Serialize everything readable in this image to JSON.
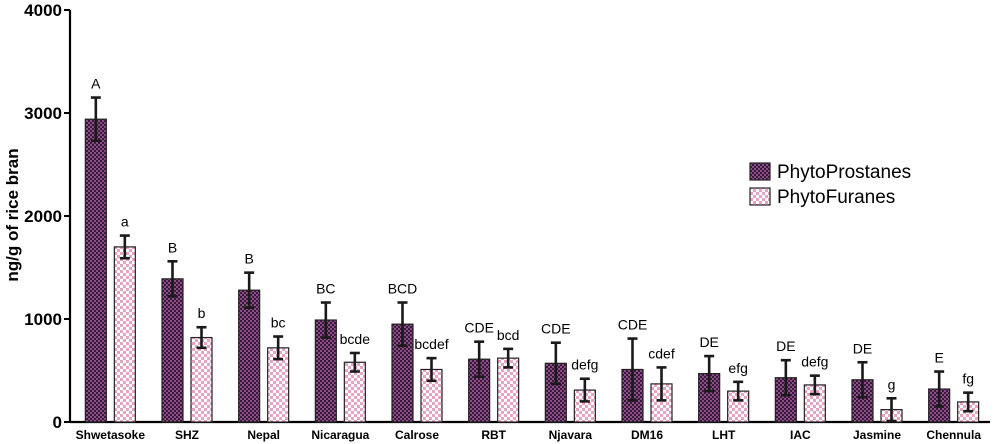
{
  "chart_data": {
    "type": "bar",
    "ylabel": "ng/g of rice bran",
    "xlabel": "",
    "ylim": [
      0,
      4000
    ],
    "yticks": [
      0,
      1000,
      2000,
      3000,
      4000
    ],
    "categories": [
      "Shwetasoke",
      "SHZ",
      "Nepal",
      "Nicaragua",
      "Calrose",
      "RBT",
      "Njavara",
      "DM16",
      "LHT",
      "IAC",
      "Jasmine",
      "Chennula"
    ],
    "legend_position": "right",
    "series": [
      {
        "name": "PhytoProstanes",
        "color": "#7b3f78",
        "pattern": "checker-dark",
        "values": [
          2940,
          1390,
          1280,
          990,
          950,
          610,
          570,
          510,
          470,
          430,
          410,
          320
        ],
        "errors": [
          210,
          170,
          170,
          170,
          210,
          170,
          200,
          300,
          170,
          170,
          170,
          170
        ],
        "labels": [
          "A",
          "B",
          "B",
          "BC",
          "BCD",
          "CDE",
          "CDE",
          "CDE",
          "DE",
          "DE",
          "DE",
          "E"
        ]
      },
      {
        "name": "PhytoFuranes",
        "color": "#f2b6cf",
        "pattern": "checker-light",
        "values": [
          1700,
          820,
          720,
          580,
          510,
          620,
          310,
          370,
          300,
          360,
          120,
          195
        ],
        "errors": [
          110,
          100,
          110,
          90,
          110,
          90,
          110,
          160,
          90,
          90,
          110,
          90
        ],
        "labels": [
          "a",
          "b",
          "bc",
          "bcde",
          "bcdef",
          "bcd",
          "defg",
          "cdef",
          "efg",
          "defg",
          "g",
          "fg"
        ]
      }
    ]
  }
}
